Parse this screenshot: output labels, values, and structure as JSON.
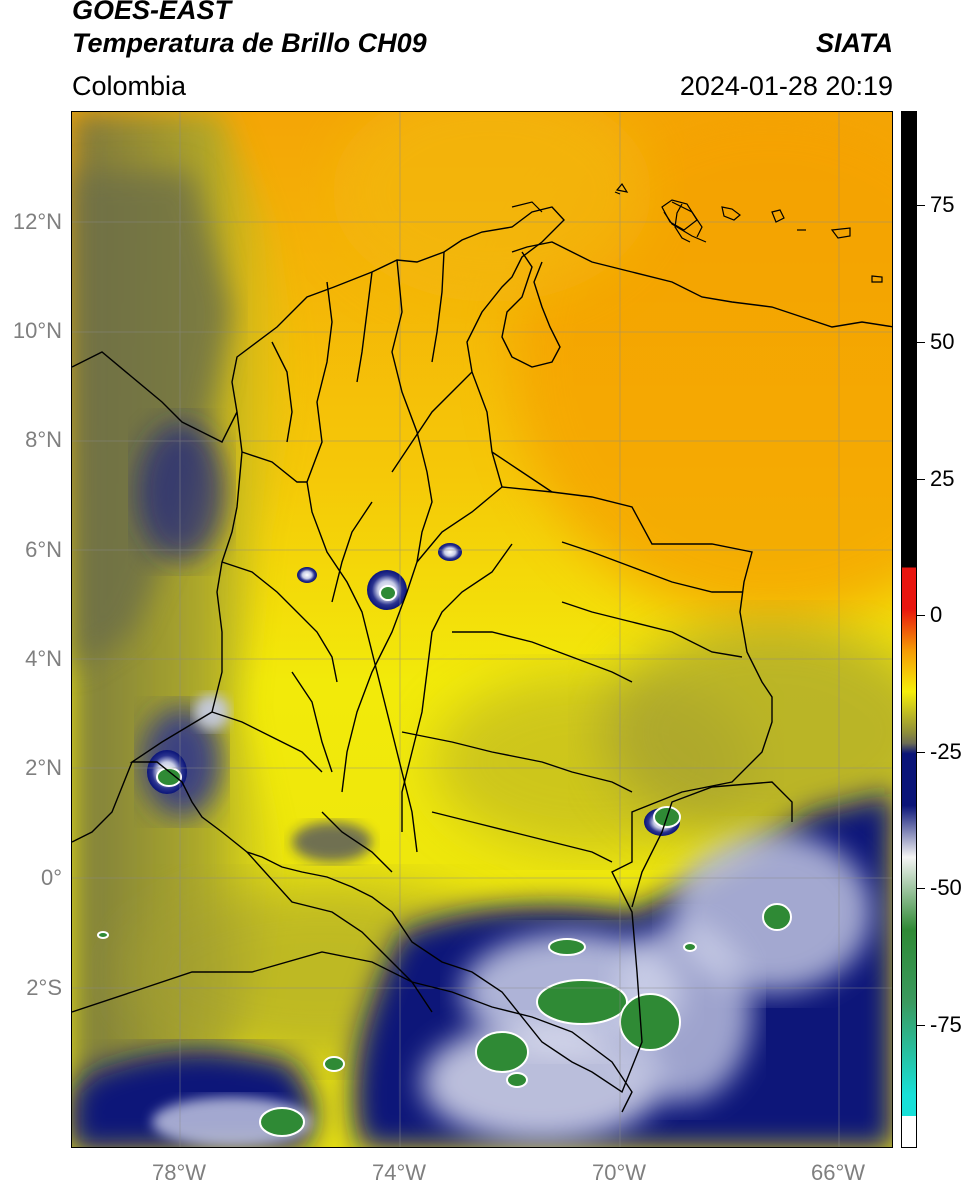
{
  "header": {
    "satellite": "GOES-EAST",
    "product": "Temperatura de Brillo CH09",
    "source": "SIATA",
    "region": "Colombia",
    "datetime": "2024-01-28 20:19"
  },
  "map": {
    "lat_labels": [
      "12°N",
      "10°N",
      "8°N",
      "6°N",
      "4°N",
      "2°N",
      "0°",
      "2°S"
    ],
    "lon_labels": [
      "78°W",
      "74°W",
      "70°W",
      "66°W"
    ]
  },
  "colorbar": {
    "tick_labels": [
      "75",
      "50",
      "25",
      "0",
      "-25",
      "-50",
      "-75"
    ],
    "colors": {
      "black_top": "#000000",
      "red": "#e8150f",
      "orange": "#f59a05",
      "yellow": "#f5ee0a",
      "olive": "#8d8d3a",
      "navy": "#0a1478",
      "white": "#f4f4f4",
      "green": "#2f8a35",
      "cyan": "#18e0d8"
    }
  }
}
